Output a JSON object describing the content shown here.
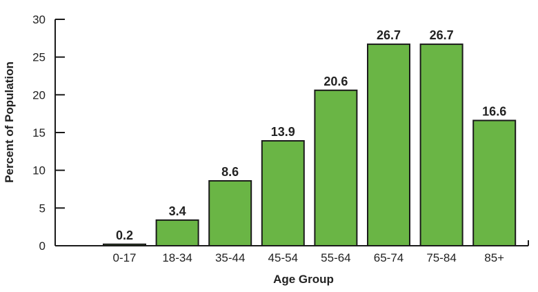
{
  "chart_data": {
    "type": "bar",
    "categories": [
      "0-17",
      "18-34",
      "35-44",
      "45-54",
      "55-64",
      "65-74",
      "75-84",
      "85+"
    ],
    "values": [
      0.2,
      3.4,
      8.6,
      13.9,
      20.6,
      26.7,
      26.7,
      16.6
    ],
    "value_labels": [
      "0.2",
      "3.4",
      "8.6",
      "13.9",
      "20.6",
      "26.7",
      "26.7",
      "16.6"
    ],
    "xlabel": "Age Group",
    "ylabel": "Percent of Population",
    "ylim": [
      0,
      30
    ],
    "yticks": [
      0,
      5,
      10,
      15,
      20,
      25,
      30
    ],
    "ytick_labels": [
      "0",
      "5",
      "10",
      "15",
      "20",
      "25",
      "30"
    ],
    "grid": false,
    "legend": "none",
    "bar_color": "#6ab545",
    "bar_edge_color": "#1a1a1a",
    "axis_color": "#1a1a1a"
  }
}
